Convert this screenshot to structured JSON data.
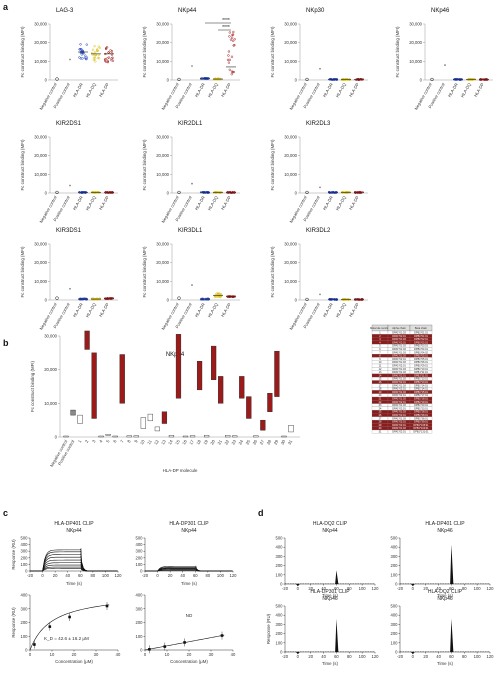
{
  "panel_letters": [
    "a",
    "b",
    "c",
    "d"
  ],
  "colors": {
    "hla_dr": "#1f3fbf",
    "hla_dq": "#d8c21a",
    "hla_dp": "#a21b1b",
    "neg": "#111111",
    "pos": "#888888",
    "box_red": "#9b1a1a",
    "box_grey": "#8a8a8a",
    "table_dark": "#8b1c1c"
  },
  "chart_data": [
    {
      "panel": "a",
      "type": "scatter",
      "subpanels": [
        {
          "title": "LAG-3",
          "ylabel": "Fc construct binding (MFI)",
          "ylim": [
            0,
            30000
          ],
          "yticks": [
            "0",
            "10,000",
            "20,000",
            "30,000"
          ],
          "categories": [
            "Negative control",
            "Positive control",
            "HLA-DR",
            "HLA-DQ",
            "HLA-DP"
          ],
          "means": [
            500,
            11000,
            15000,
            14000,
            14000
          ],
          "significance": []
        },
        {
          "title": "NKp44",
          "ylabel": "Fc construct binding (MFI)",
          "ylim": [
            0,
            30000
          ],
          "yticks": [
            "0",
            "10,000",
            "20,000",
            "30,000"
          ],
          "categories": [
            "Negative control",
            "Positive control",
            "HLA-DR",
            "HLA-DQ",
            "HLA-DP"
          ],
          "means": [
            300,
            7500,
            800,
            500,
            7000
          ],
          "significance": [
            "****",
            "****"
          ]
        },
        {
          "title": "NKp30",
          "ylabel": "Fc construct binding (MFI)",
          "ylim": [
            0,
            30000
          ],
          "yticks": [
            "0",
            "10,000",
            "20,000",
            "30,000"
          ],
          "categories": [
            "Negative control",
            "Positive control",
            "HLA-DR",
            "HLA-DQ",
            "HLA-DP"
          ],
          "means": [
            300,
            6000,
            300,
            300,
            300
          ],
          "significance": []
        },
        {
          "title": "NKp46",
          "ylabel": "Fc construct binding (MFI)",
          "ylim": [
            0,
            30000
          ],
          "yticks": [
            "0",
            "10,000",
            "20,000",
            "30,000"
          ],
          "categories": [
            "Negative control",
            "Positive control",
            "HLA-DR",
            "HLA-DQ",
            "HLA-DP"
          ],
          "means": [
            300,
            8000,
            300,
            300,
            300
          ],
          "significance": []
        },
        {
          "title": "KIR2DS1",
          "ylabel": "Fc construct binding (MFI)",
          "ylim": [
            0,
            30000
          ],
          "yticks": [
            "0",
            "10,000",
            "20,000",
            "30,000"
          ],
          "categories": [
            "Negative control",
            "Positive control",
            "HLA-DR",
            "HLA-DQ",
            "HLA-DP"
          ],
          "means": [
            300,
            4000,
            300,
            300,
            300
          ],
          "significance": []
        },
        {
          "title": "KIR2DL1",
          "ylabel": "Fc construct binding (MFI)",
          "ylim": [
            0,
            30000
          ],
          "yticks": [
            "0",
            "10,000",
            "20,000",
            "30,000"
          ],
          "categories": [
            "Negative control",
            "Positive control",
            "HLA-DR",
            "HLA-DQ",
            "HLA-DP"
          ],
          "means": [
            300,
            5000,
            300,
            300,
            300
          ],
          "significance": []
        },
        {
          "title": "KIR2DL3",
          "ylabel": "Fc construct binding (MFI)",
          "ylim": [
            0,
            30000
          ],
          "yticks": [
            "0",
            "10,000",
            "20,000",
            "30,000"
          ],
          "categories": [
            "Negative control",
            "Positive control",
            "HLA-DR",
            "HLA-DQ",
            "HLA-DP"
          ],
          "means": [
            300,
            3000,
            300,
            300,
            300
          ],
          "significance": []
        },
        {
          "title": "KIR3DS1",
          "ylabel": "Fc construct binding (MFI)",
          "ylim": [
            0,
            30000
          ],
          "yticks": [
            "0",
            "10,000",
            "20,000",
            "30,000"
          ],
          "categories": [
            "Negative control",
            "Positive control",
            "HLA-DR",
            "HLA-DQ",
            "HLA-DP"
          ],
          "means": [
            1000,
            6000,
            500,
            500,
            800
          ],
          "significance": []
        },
        {
          "title": "KIR3DL1",
          "ylabel": "Fc construct binding (MFI)",
          "ylim": [
            0,
            30000
          ],
          "yticks": [
            "0",
            "10,000",
            "20,000",
            "30,000"
          ],
          "categories": [
            "Negative control",
            "Positive control",
            "HLA-DR",
            "HLA-DQ",
            "HLA-DP"
          ],
          "means": [
            1000,
            8000,
            500,
            2500,
            1800
          ],
          "significance": []
        },
        {
          "title": "KIR3DL2",
          "ylabel": "Fc construct binding (MFI)",
          "ylim": [
            0,
            30000
          ],
          "yticks": [
            "0",
            "10,000",
            "20,000",
            "30,000"
          ],
          "categories": [
            "Negative control",
            "Positive control",
            "HLA-DR",
            "HLA-DQ",
            "HLA-DP"
          ],
          "means": [
            300,
            3000,
            300,
            300,
            300
          ],
          "significance": []
        }
      ]
    },
    {
      "panel": "b",
      "type": "bar",
      "title": "NKp44",
      "ylabel": "Fc construct binding (MFI)",
      "xlabel": "HLA-DP molecule",
      "ylim": [
        0,
        30000
      ],
      "yticks": [
        "0",
        "10,000",
        "20,000",
        "30,000"
      ],
      "categories": [
        "Negative control",
        "Positive control",
        "1",
        "2",
        "3",
        "4",
        "5",
        "6",
        "7",
        "8",
        "9",
        "10",
        "11",
        "12",
        "13",
        "14",
        "15",
        "16",
        "17",
        "18",
        "19",
        "20",
        "21",
        "22",
        "23",
        "24",
        "25",
        "26",
        "27",
        "28",
        "29",
        "30",
        "31"
      ],
      "ranges": [
        [
          0,
          300
        ],
        [
          6500,
          8000
        ],
        [
          4000,
          6500
        ],
        [
          26000,
          31500
        ],
        [
          5500,
          25000
        ],
        [
          0,
          300
        ],
        [
          500,
          800
        ],
        [
          0,
          300
        ],
        [
          10000,
          24500
        ],
        [
          0,
          400
        ],
        [
          0,
          400
        ],
        [
          2500,
          5800
        ],
        [
          4800,
          6800
        ],
        [
          1800,
          3000
        ],
        [
          4000,
          7500
        ],
        [
          0,
          500
        ],
        [
          11500,
          30500
        ],
        [
          0,
          300
        ],
        [
          0,
          400
        ],
        [
          14000,
          22500
        ],
        [
          0,
          500
        ],
        [
          17000,
          27000
        ],
        [
          10000,
          18000
        ],
        [
          0,
          500
        ],
        [
          0,
          400
        ],
        [
          11500,
          18000
        ],
        [
          5500,
          12000
        ],
        [
          0,
          400
        ],
        [
          2000,
          5000
        ],
        [
          7500,
          13000
        ],
        [
          12000,
          25500
        ],
        [
          0,
          300
        ],
        [
          1500,
          3500
        ],
        [
          0,
          300
        ]
      ],
      "fill_group": [
        "none",
        "grey",
        "none",
        "red",
        "red",
        "none",
        "none",
        "none",
        "red",
        "none",
        "none",
        "none",
        "none",
        "none",
        "red",
        "none",
        "red",
        "none",
        "none",
        "red",
        "none",
        "red",
        "red",
        "none",
        "none",
        "red",
        "red",
        "none",
        "red",
        "red",
        "red",
        "none",
        "none",
        "none"
      ],
      "table": {
        "headers": [
          "Molecule number",
          "Alpha chain",
          "Beta chain"
        ],
        "rows": [
          [
            "1",
            "DPA1*01:03",
            "DPB1*01:01"
          ],
          [
            "2",
            "DPA1*02:01",
            "DPB1*01:01"
          ],
          [
            "3",
            "DPA1*01:03",
            "DPB1*02:01"
          ],
          [
            "4",
            "DPA1*02:01",
            "DPB1*02:01"
          ],
          [
            "5",
            "DPA1*01:03",
            "DPB1*03:01"
          ],
          [
            "6",
            "DPA1*01:03",
            "DPB1*04:01"
          ],
          [
            "7",
            "DPA1*01:03",
            "DPB1*04:02"
          ],
          [
            "8",
            "DPA1*01:03",
            "DPB1*05:01"
          ],
          [
            "9",
            "DPA1*02:01",
            "DPB1*05:01"
          ],
          [
            "10",
            "DPA1*01:03",
            "DPB1*06:01"
          ],
          [
            "11",
            "DPA1*02:01",
            "DPB1*09:01"
          ],
          [
            "12",
            "DPA1*01:03",
            "DPB1*10:01"
          ],
          [
            "13",
            "DPA1*01:03",
            "DPB1*11:01"
          ],
          [
            "14",
            "DPA1*02:01",
            "DPB1*11:01"
          ],
          [
            "15",
            "DPA1*01:03",
            "DPB1*13:01"
          ],
          [
            "16",
            "DPA1*02:01",
            "DPB1*13:01"
          ],
          [
            "17",
            "DPA1*01:03",
            "DPB1*14:01"
          ],
          [
            "18",
            "DPA1*02:01",
            "DPB1*14:01"
          ],
          [
            "19",
            "DPA1*01:03",
            "DPB1*15:01"
          ],
          [
            "20",
            "DPA1*02:01",
            "DPB1*17:01"
          ],
          [
            "21",
            "DPA1*01:03",
            "DPB1*18:01"
          ],
          [
            "22",
            "DPA1*02:01",
            "DPB1*19:01"
          ],
          [
            "23",
            "DPA1*01:03",
            "DPB1*20:01"
          ],
          [
            "24",
            "DPA1*02:01",
            "DPB1*23:01"
          ],
          [
            "25",
            "DPA1*01:03",
            "DPB1*28:01"
          ],
          [
            "26",
            "DPA1*02:01",
            "DPB1*28:01"
          ],
          [
            "27",
            "DPA1*01:03",
            "DPB1*38:01"
          ],
          [
            "28",
            "DPA1*02:01",
            "DPB1*39:01"
          ],
          [
            "29",
            "DPA1*02:01",
            "DPB1*105:01"
          ],
          [
            "30",
            "DPA1*01:03",
            "DPB1*104:01"
          ],
          [
            "31",
            "DPA1*02:01",
            "DPB1*131:01"
          ]
        ],
        "highlight_rows": [
          2,
          3,
          4,
          8,
          14,
          16,
          19,
          21,
          22,
          25,
          26,
          28,
          29,
          30
        ]
      }
    },
    {
      "panel": "c",
      "type": "line",
      "subpanels": [
        {
          "title_lines": [
            "HLA-DP401 CLIP",
            "NKp44"
          ],
          "xlabel": "Time (s)",
          "ylabel": "Response (RU)",
          "xlim": [
            -20,
            120
          ],
          "ylim": [
            0,
            500
          ],
          "xticks": [
            "-20",
            "0",
            "20",
            "40",
            "60",
            "80",
            "100",
            "120"
          ],
          "yticks": [
            "0",
            "100",
            "200",
            "300",
            "400",
            "500"
          ],
          "plateaus": [
            320,
            290,
            250,
            210,
            165,
            125,
            90,
            60,
            40
          ]
        },
        {
          "title_lines": [
            "HLA-DP301 CLIP",
            "NKp44"
          ],
          "xlabel": "Time (s)",
          "ylabel": "",
          "xlim": [
            -20,
            120
          ],
          "ylim": [
            0,
            500
          ],
          "xticks": [
            "-20",
            "0",
            "20",
            "40",
            "60",
            "80",
            "100",
            "120"
          ],
          "yticks": [
            "0",
            "100",
            "200",
            "300",
            "400",
            "500"
          ],
          "plateaus": [
            70,
            55,
            45,
            35,
            25,
            15,
            10
          ]
        },
        {
          "title_lines": [],
          "xlabel": "Concentration (μM)",
          "ylabel": "Response (RU)",
          "xlim": [
            0,
            40
          ],
          "ylim": [
            0,
            400
          ],
          "xticks": [
            "0",
            "10",
            "20",
            "30",
            "40"
          ],
          "yticks": [
            "0",
            "100",
            "200",
            "300",
            "400"
          ],
          "annotation": "K_D = 42.6 ± 16.2 μM",
          "points": [
            {
              "x": 2,
              "y": 40
            },
            {
              "x": 9,
              "y": 170
            },
            {
              "x": 18,
              "y": 240
            },
            {
              "x": 35,
              "y": 320
            }
          ]
        },
        {
          "title_lines": [],
          "xlabel": "Concentration (μM)",
          "ylabel": "",
          "xlim": [
            0,
            40
          ],
          "ylim": [
            0,
            400
          ],
          "xticks": [
            "0",
            "10",
            "20",
            "30",
            "40"
          ],
          "yticks": [
            "0",
            "100",
            "200",
            "300",
            "400"
          ],
          "annotation": "ND",
          "points": [
            {
              "x": 2,
              "y": 5
            },
            {
              "x": 9,
              "y": 25
            },
            {
              "x": 18,
              "y": 55
            },
            {
              "x": 35,
              "y": 105
            }
          ]
        }
      ]
    },
    {
      "panel": "d",
      "type": "line",
      "subpanels": [
        {
          "title_lines": [
            "HLA-DQ2 CLIP",
            "NKp44"
          ],
          "xlabel": "Time (s)",
          "ylabel": "",
          "xlim": [
            -20,
            120
          ],
          "ylim": [
            0,
            500
          ],
          "xticks": [
            "-20",
            "0",
            "20",
            "40",
            "60",
            "80",
            "100",
            "120"
          ],
          "yticks": [
            "0",
            "100",
            "200",
            "300",
            "400",
            "500"
          ],
          "spike": 150
        },
        {
          "title_lines": [
            "HLA-DP401 CLIP",
            "NKp46"
          ],
          "xlabel": "Time (s)",
          "ylabel": "",
          "xlim": [
            -20,
            120
          ],
          "ylim": [
            0,
            500
          ],
          "xticks": [
            "-20",
            "0",
            "20",
            "40",
            "60",
            "80",
            "100",
            "120"
          ],
          "yticks": [
            "0",
            "100",
            "200",
            "300",
            "400",
            "500"
          ],
          "spike": 430
        },
        {
          "title_lines": [
            "HLA-DP301 CLIP",
            "NKp46"
          ],
          "xlabel": "Time (s)",
          "ylabel": "Response (RU)",
          "xlim": [
            -20,
            120
          ],
          "ylim": [
            0,
            500
          ],
          "xticks": [
            "-20",
            "0",
            "20",
            "40",
            "60",
            "80",
            "100",
            "120"
          ],
          "yticks": [
            "0",
            "100",
            "200",
            "300",
            "400",
            "500"
          ],
          "spike": 360
        },
        {
          "title_lines": [
            "HLA-DQ2 CLIP",
            "NKp46"
          ],
          "xlabel": "Time (s)",
          "ylabel": "",
          "xlim": [
            -20,
            120
          ],
          "ylim": [
            0,
            500
          ],
          "xticks": [
            "-20",
            "0",
            "20",
            "40",
            "60",
            "80",
            "100",
            "120"
          ],
          "yticks": [
            "0",
            "100",
            "200",
            "300",
            "400",
            "500"
          ],
          "spike": 360
        }
      ]
    }
  ]
}
